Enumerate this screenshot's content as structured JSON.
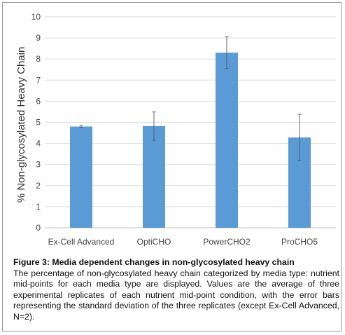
{
  "chart_data": {
    "type": "bar",
    "categories": [
      "Ex-Cell Advanced",
      "OptiCHO",
      "PowerCHO2",
      "ProCHO5"
    ],
    "values": [
      4.8,
      4.82,
      8.3,
      4.28
    ],
    "error": [
      0.05,
      0.67,
      0.75,
      1.1
    ],
    "ylabel": "% Non-glycosylated Heavy Chain",
    "ylim": [
      0,
      10
    ],
    "yticks": [
      "0",
      "1",
      "2",
      "3",
      "4",
      "5",
      "6",
      "7",
      "8",
      "9",
      "10"
    ],
    "grid": true,
    "bar_color": "#5b9bd5",
    "grid_color": "#d9d9d9"
  },
  "caption": {
    "title": "Figure 3: Media dependent changes in non-glycosylated heavy chain",
    "text": "The percentage of non-glycosylated heavy chain categorized by media type: nutrient mid-points for each media type are displayed. Values are the average of three experimental replicates of each nutrient mid-point condition, with the error bars representing the standard deviation of the three replicates (except Ex-Cell Advanced, N=2)."
  }
}
